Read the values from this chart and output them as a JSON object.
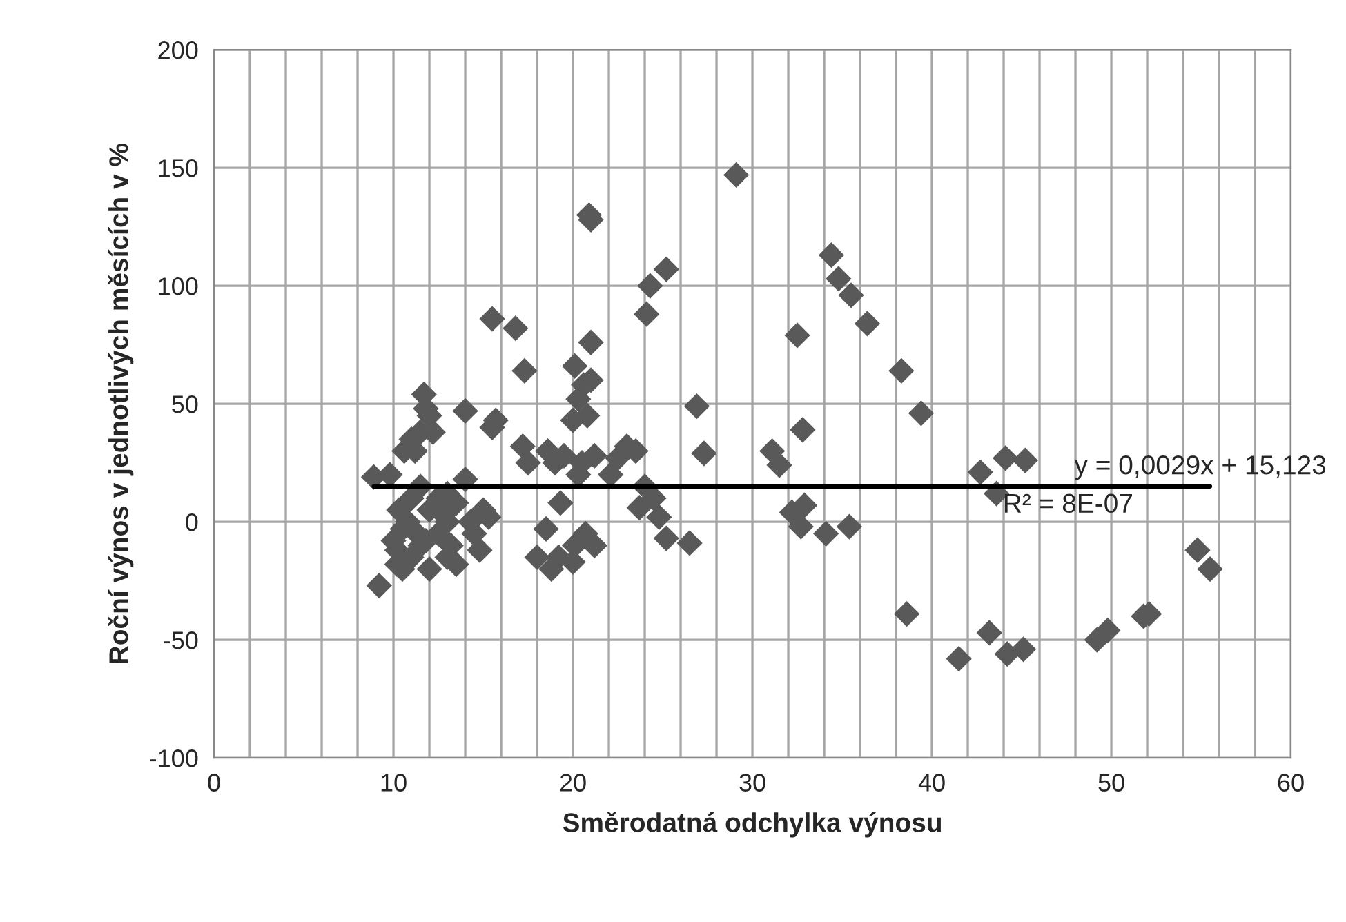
{
  "chart_data": {
    "type": "scatter",
    "xlabel": "Směrodatná odchylka výnosu",
    "ylabel": "Roční výnos v jednotlivých měsících v %",
    "xlim": [
      0,
      60
    ],
    "ylim": [
      -100,
      200
    ],
    "xticks": [
      0,
      {
        "value": 2,
        "label": null
      },
      {
        "value": 4,
        "label": null
      },
      {
        "value": 6,
        "label": null
      },
      {
        "value": 8,
        "label": null
      },
      10,
      {
        "value": 12,
        "label": null
      },
      {
        "value": 14,
        "label": null
      },
      {
        "value": 16,
        "label": null
      },
      {
        "value": 18,
        "label": null
      },
      20,
      {
        "value": 22,
        "label": null
      },
      {
        "value": 24,
        "label": null
      },
      {
        "value": 26,
        "label": null
      },
      {
        "value": 28,
        "label": null
      },
      30,
      {
        "value": 32,
        "label": null
      },
      {
        "value": 34,
        "label": null
      },
      {
        "value": 36,
        "label": null
      },
      {
        "value": 38,
        "label": null
      },
      40,
      {
        "value": 42,
        "label": null
      },
      {
        "value": 44,
        "label": null
      },
      {
        "value": 46,
        "label": null
      },
      {
        "value": 48,
        "label": null
      },
      50,
      {
        "value": 52,
        "label": null
      },
      {
        "value": 54,
        "label": null
      },
      {
        "value": 56,
        "label": null
      },
      {
        "value": 58,
        "label": null
      },
      60
    ],
    "yticks": [
      -100,
      -50,
      0,
      50,
      100,
      150,
      200
    ],
    "grid": true,
    "legend": false,
    "marker": "diamond",
    "series": [
      {
        "color": "#595959",
        "x": [
          8.9,
          9.2,
          9.8,
          10,
          10.2,
          10.5,
          10.3,
          10.6,
          11,
          11.2,
          11.5,
          11.7,
          11.8,
          12,
          12.2,
          11.5,
          11,
          10.8,
          10.5,
          11,
          11.5,
          12,
          12.5,
          12,
          12.5,
          13,
          13.2,
          13.5,
          13,
          13.5,
          14,
          14,
          14.3,
          14.5,
          14.8,
          15,
          15.3,
          15.5,
          15.7,
          15.5,
          13,
          12.8,
          11.3,
          10.2,
          11.8,
          16.8,
          17.3,
          17.2,
          17.5,
          18,
          18.5,
          18.8,
          18.6,
          19,
          19.3,
          19.5,
          19.2,
          20,
          20,
          20.1,
          20.3,
          20.5,
          20.6,
          20.8,
          20.9,
          21,
          21,
          21,
          21.2,
          21.2,
          20.7,
          20.3,
          20.1,
          22.1,
          22.5,
          23,
          23.5,
          23.7,
          24,
          24.1,
          24.3,
          24.5,
          24.8,
          25.2,
          25.2,
          26.5,
          26.9,
          27.3,
          29.1,
          31.1,
          31.5,
          32.2,
          32.5,
          32.7,
          32.8,
          32.9,
          34.1,
          34.4,
          34.8,
          35.4,
          35.5,
          36.4,
          38.3,
          38.6,
          39.4,
          41.5,
          42.7,
          43.2,
          43.6,
          44.1,
          44.2,
          45.1,
          45.2,
          49.2,
          49.8,
          51.8,
          52.1,
          54.8,
          55.5
        ],
        "values": [
          19,
          -27,
          20,
          -8,
          -12,
          -3,
          5,
          30,
          35,
          30,
          38,
          54,
          48,
          45,
          38,
          15,
          10,
          0,
          -20,
          -15,
          -10,
          -20,
          -5,
          5,
          10,
          0,
          -10,
          -18,
          12,
          8,
          18,
          47,
          0,
          -5,
          -12,
          5,
          2,
          40,
          43,
          86,
          -15,
          3,
          -5,
          -18,
          -8,
          82,
          64,
          32,
          25,
          -15,
          -3,
          -20,
          30,
          25,
          8,
          28,
          -15,
          -17,
          43,
          66,
          52,
          25,
          58,
          45,
          130,
          128,
          76,
          60,
          28,
          -10,
          -5,
          20,
          -10,
          20,
          27,
          32,
          30,
          6,
          15,
          88,
          100,
          10,
          2,
          107,
          -7,
          -9,
          49,
          29,
          147,
          30,
          24,
          4,
          79,
          -2,
          39,
          7,
          -5,
          113,
          103,
          -2,
          96,
          84,
          64,
          -39,
          46,
          -58,
          21,
          -47,
          12,
          27,
          -56,
          -54,
          26,
          -50,
          -46,
          -40,
          -39,
          -12,
          -20
        ]
      },
      {
        "type": "line",
        "color": "#000000",
        "marker": "none",
        "x": [
          8.9,
          55.5
        ],
        "values": [
          15,
          15
        ]
      }
    ],
    "annotations": [
      "y = 0,0029x + 15,123",
      "R² = 8E-07"
    ]
  }
}
